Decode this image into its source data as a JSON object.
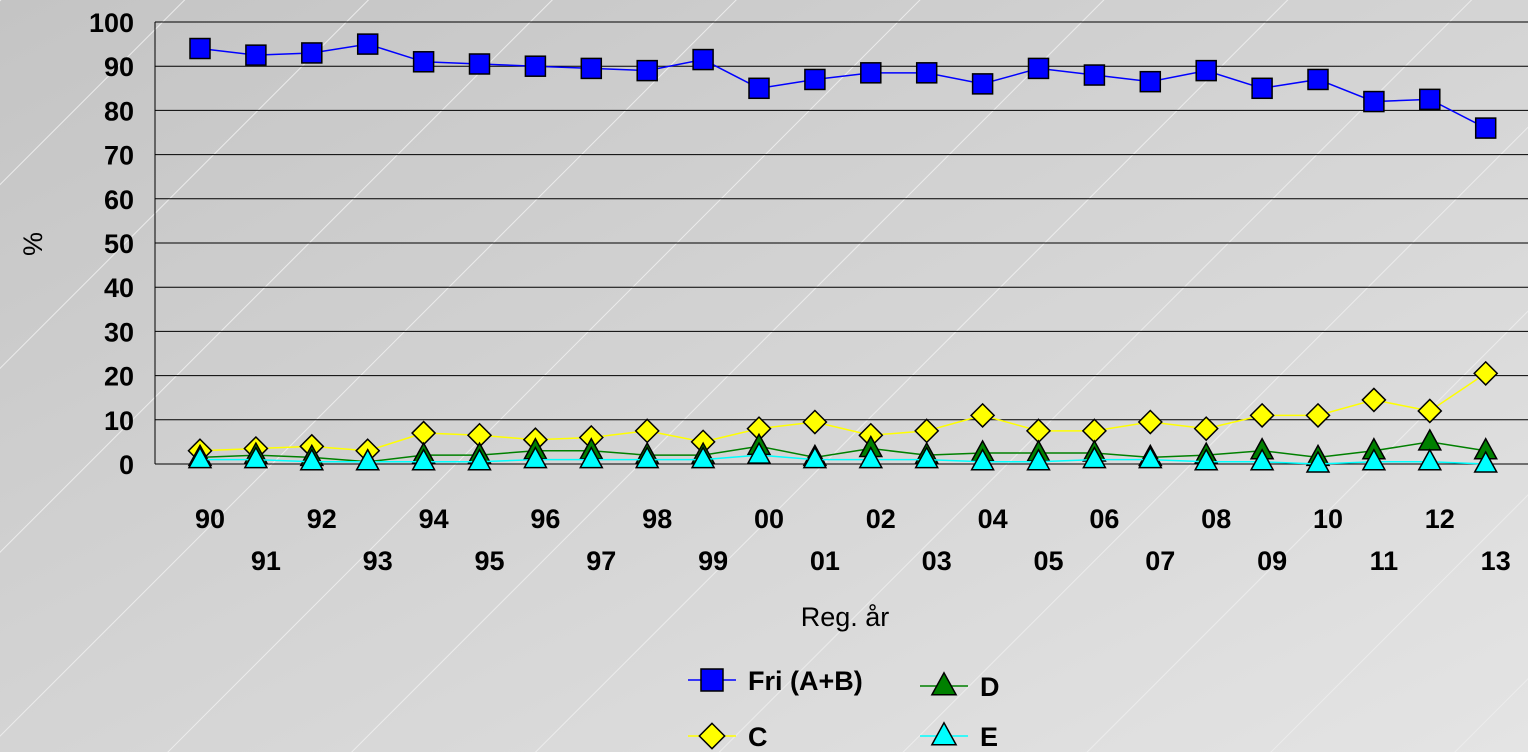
{
  "chart_data": {
    "type": "line",
    "xlabel": "Reg. år",
    "ylabel": "%",
    "ylim": [
      0,
      100
    ],
    "yticks": [
      0,
      10,
      20,
      30,
      40,
      50,
      60,
      70,
      80,
      90,
      100
    ],
    "categories": [
      "90",
      "91",
      "92",
      "93",
      "94",
      "95",
      "96",
      "97",
      "98",
      "99",
      "00",
      "01",
      "02",
      "03",
      "04",
      "05",
      "06",
      "07",
      "08",
      "09",
      "10",
      "11",
      "12",
      "13"
    ],
    "grid": "horizontal",
    "legend_position": "bottom",
    "series": [
      {
        "name": "Fri (A+B)",
        "color": "#0000ff",
        "marker": "square",
        "values": [
          94,
          92.5,
          93,
          95,
          91,
          90.5,
          90,
          89.5,
          89,
          91.5,
          85,
          87,
          88.5,
          88.5,
          86,
          89.5,
          88,
          86.5,
          89,
          85,
          87,
          82,
          82.5,
          76
        ]
      },
      {
        "name": "C",
        "color": "#ffff00",
        "marker": "diamond",
        "values": [
          3,
          3.5,
          4,
          3,
          7,
          6.5,
          5.5,
          6,
          7.5,
          5,
          8,
          9.5,
          6.5,
          7.5,
          11,
          7.5,
          7.5,
          9.5,
          8,
          11,
          11,
          14.5,
          12,
          20.5
        ]
      },
      {
        "name": "D",
        "color": "#008000",
        "marker": "triangle",
        "values": [
          1.5,
          2,
          1.5,
          0.5,
          2,
          2,
          3,
          3,
          2,
          2,
          4,
          1.5,
          3.5,
          2,
          2.5,
          2.5,
          2.5,
          1.5,
          2,
          3,
          1.5,
          3,
          5,
          3
        ]
      },
      {
        "name": "E",
        "color": "#00ffff",
        "marker": "triangle",
        "values": [
          1,
          1,
          0.5,
          0.5,
          0.5,
          0.5,
          1,
          1,
          1,
          1,
          2,
          1,
          1,
          1,
          0.5,
          0.5,
          1,
          1,
          0.5,
          0.5,
          0,
          0.5,
          0.5,
          0
        ]
      }
    ]
  }
}
